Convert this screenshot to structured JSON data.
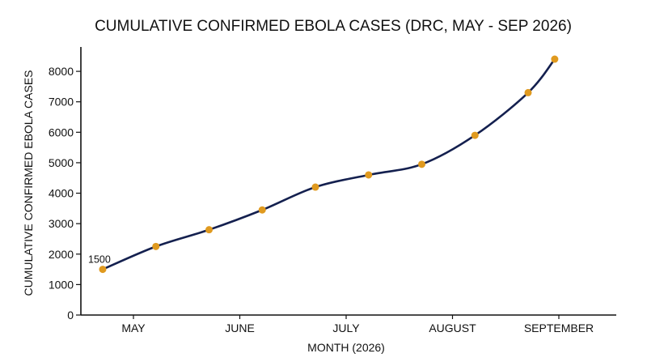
{
  "chart_data": {
    "type": "line",
    "title": "CUMULATIVE CONFIRMED EBOLA CASES (DRC, MAY - SEP 2026)",
    "xlabel": "MONTH (2026)",
    "ylabel": "CUMULATIVE CONFIRMED EBOLA CASES",
    "categories": [
      "MAY",
      "JUNE",
      "JULY",
      "AUGUST",
      "SEPTEMBER"
    ],
    "x_range": [
      0,
      4.3
    ],
    "ylim": [
      0,
      8800
    ],
    "y_ticks": [
      0,
      1000,
      2000,
      3000,
      4000,
      5000,
      6000,
      7000,
      8000
    ],
    "grid": false,
    "legend": "none",
    "colors": {
      "line": "#14204f",
      "marker": "#e09a1f"
    },
    "series": [
      {
        "x": [
          0,
          0.5,
          1,
          1.5,
          2,
          2.5,
          3,
          3.5,
          4,
          4.25
        ],
        "values": [
          1500,
          2250,
          2800,
          3450,
          4200,
          4600,
          4950,
          5900,
          7300,
          8400
        ]
      }
    ],
    "annotations": [
      {
        "text": "1500",
        "point_index": 0
      }
    ]
  }
}
